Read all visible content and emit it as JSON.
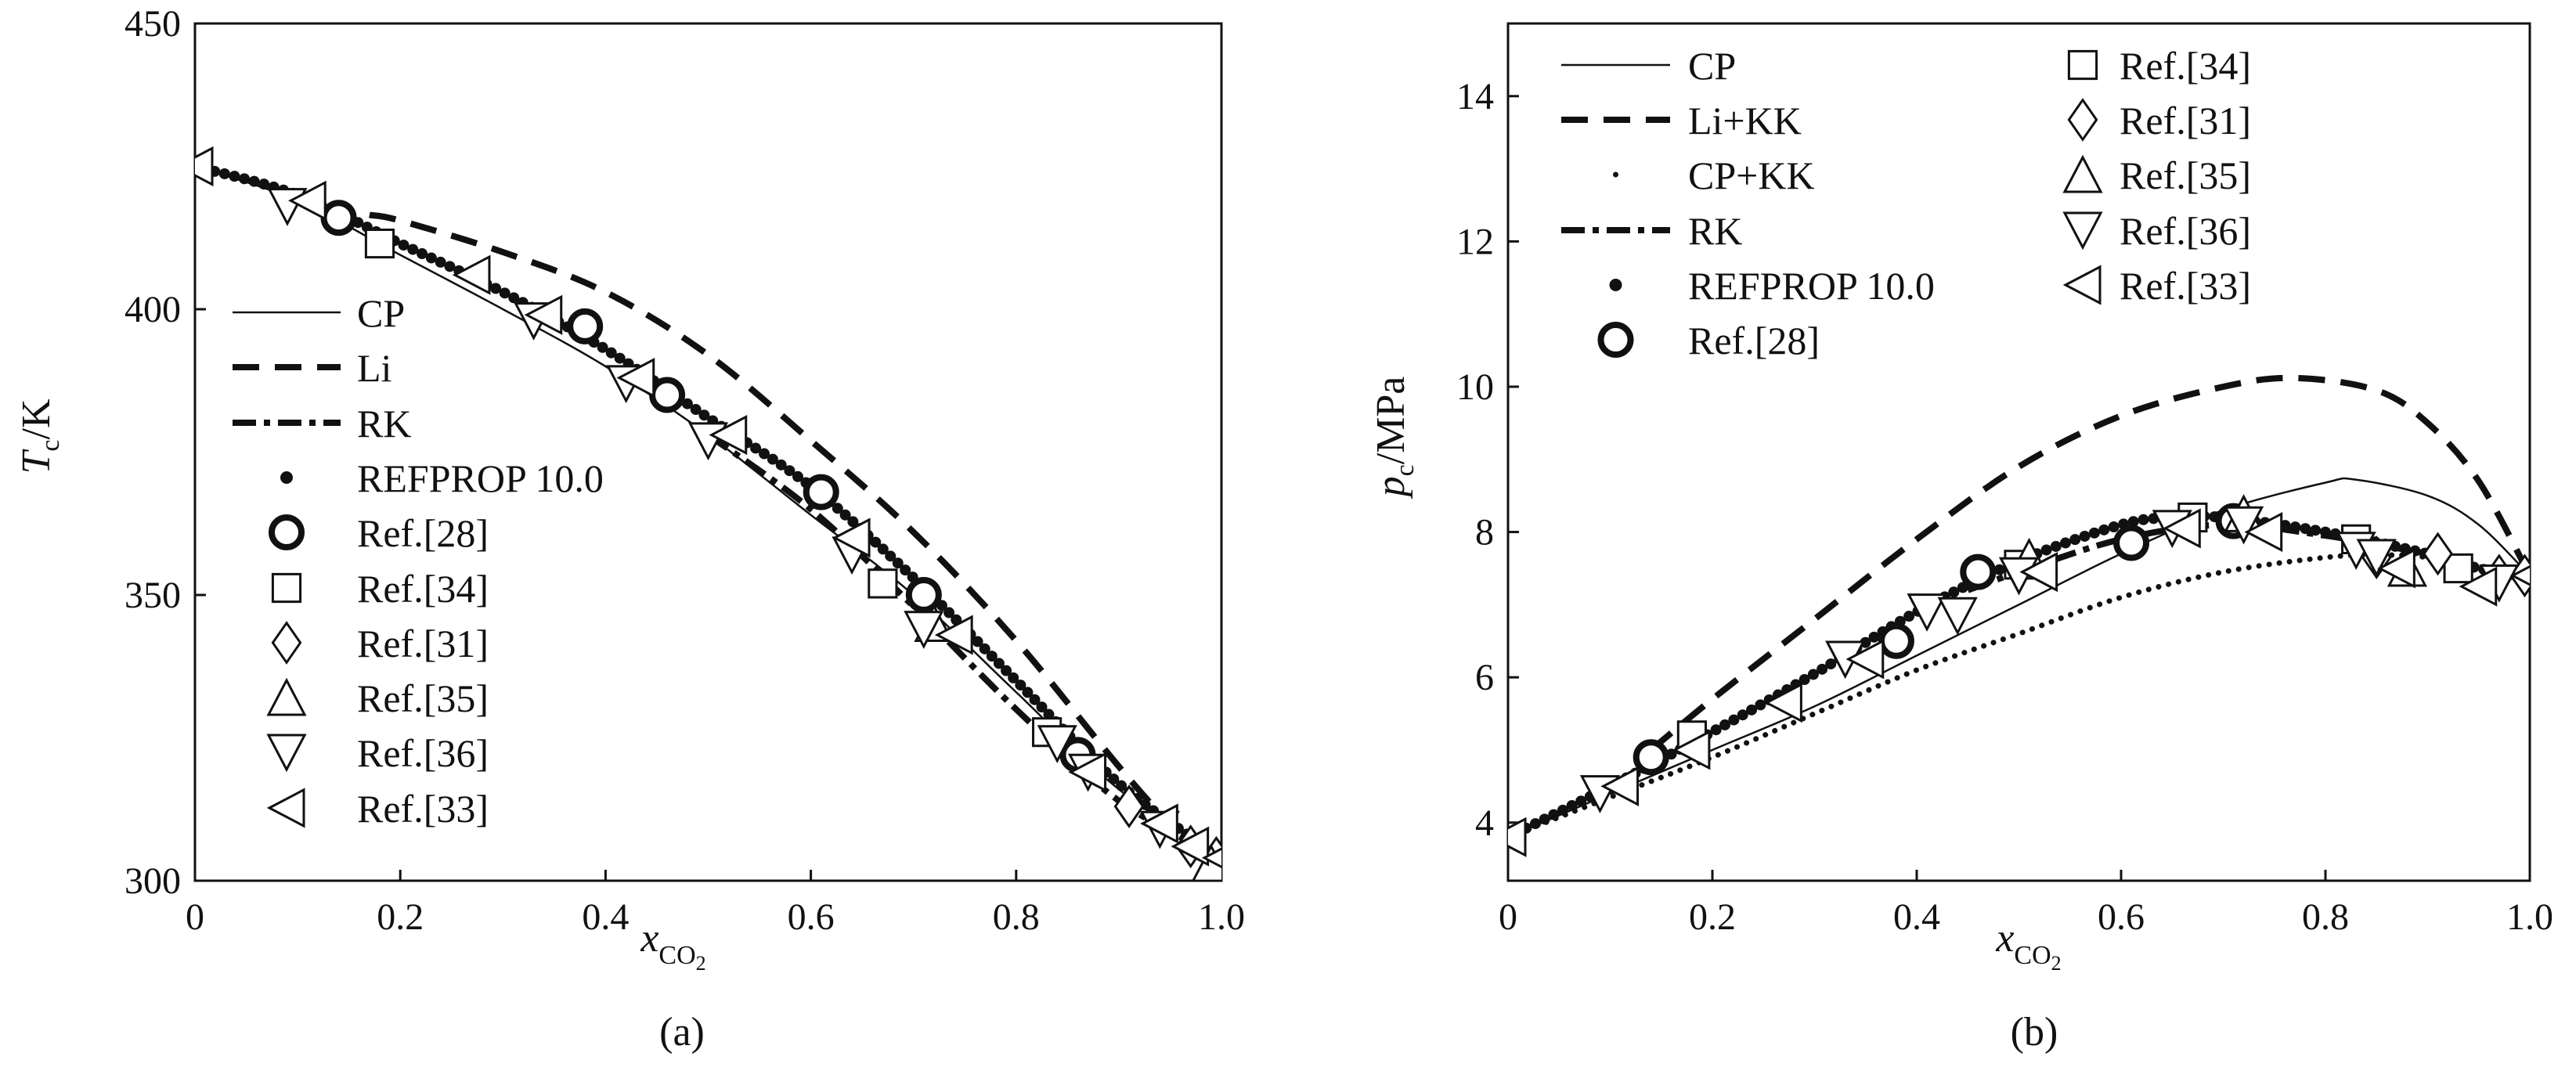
{
  "chart_data": [
    {
      "type": "line",
      "panel_label": "(a)",
      "xlabel": "x",
      "xlabel_sub": "CO",
      "xlabel_sub2": "2",
      "ylabel": "T",
      "ylabel_sub": "c",
      "ylabel_unit": "/K",
      "xlim": [
        0,
        1.0
      ],
      "ylim": [
        300,
        450
      ],
      "xticks": [
        0,
        0.2,
        0.4,
        0.6,
        0.8,
        1.0
      ],
      "xtick_labels": [
        "0",
        "0.2",
        "0.4",
        "0.6",
        "0.8",
        "1.0"
      ],
      "yticks": [
        300,
        350,
        400,
        450
      ],
      "ytick_labels": [
        "300",
        "350",
        "400",
        "450"
      ],
      "legend_placement": "center-left",
      "series": [
        {
          "name": "CP",
          "style": "solid",
          "x": [
            0,
            0.1,
            0.2,
            0.3,
            0.4,
            0.5,
            0.6,
            0.7,
            0.8,
            0.9,
            1.0
          ],
          "y": [
            425,
            419,
            409.5,
            400,
            390,
            378,
            364,
            350,
            333,
            316,
            304
          ]
        },
        {
          "name": "Li",
          "style": "dashed",
          "x": [
            0.17,
            0.2,
            0.3,
            0.4,
            0.5,
            0.6,
            0.7,
            0.8,
            0.9,
            0.95,
            1.0
          ],
          "y": [
            416.5,
            415.5,
            410,
            403,
            392,
            377,
            361,
            342,
            320,
            310,
            302
          ]
        },
        {
          "name": "RK",
          "style": "dashdot",
          "x": [
            0.5,
            0.6,
            0.7,
            0.8,
            0.9,
            1.0
          ],
          "y": [
            378,
            365,
            348,
            330,
            314,
            304
          ]
        },
        {
          "name": "REFPROP 10.0",
          "style": "dots",
          "x": [
            0,
            0.1,
            0.2,
            0.3,
            0.4,
            0.5,
            0.6,
            0.7,
            0.8,
            0.9,
            1.0
          ],
          "y": [
            425,
            420,
            411.5,
            403,
            393,
            381,
            369,
            353,
            335,
            317,
            304
          ]
        },
        {
          "name": "Ref.[28]",
          "style": "circle",
          "x": [
            0.14,
            0.38,
            0.46,
            0.61,
            0.71,
            0.86
          ],
          "y": [
            416,
            397,
            385,
            368,
            350,
            322
          ]
        },
        {
          "name": "Ref.[34]",
          "style": "square",
          "x": [
            0.18,
            0.67,
            0.83
          ],
          "y": [
            411.5,
            352,
            326
          ]
        },
        {
          "name": "Ref.[31]",
          "style": "diamond",
          "x": [
            0.91,
            0.97,
            0.995
          ],
          "y": [
            313,
            306,
            304
          ]
        },
        {
          "name": "Ref.[35]",
          "style": "triangle-up",
          "x": [
            0.72,
            0.99
          ],
          "y": [
            345,
            303
          ]
        },
        {
          "name": "Ref.[36]",
          "style": "triangle-down",
          "x": [
            0.09,
            0.33,
            0.42,
            0.5,
            0.64,
            0.71,
            0.84,
            0.87,
            0.94
          ],
          "y": [
            418,
            398,
            387,
            377,
            357,
            344,
            324,
            319,
            309
          ]
        },
        {
          "name": "Ref.[33]",
          "style": "triangle-left",
          "x": [
            0,
            0.11,
            0.27,
            0.34,
            0.43,
            0.52,
            0.64,
            0.74,
            0.87,
            0.94,
            0.97,
            1.0
          ],
          "y": [
            425,
            419,
            406,
            399,
            388,
            378,
            360,
            343,
            319,
            310,
            306,
            304
          ]
        }
      ]
    },
    {
      "type": "line",
      "panel_label": "(b)",
      "xlabel": "x",
      "xlabel_sub": "CO",
      "xlabel_sub2": "2",
      "ylabel": "p",
      "ylabel_sub": "c",
      "ylabel_unit": "/MPa",
      "xlim": [
        0,
        1.0
      ],
      "ylim": [
        3.2,
        15
      ],
      "xticks": [
        0,
        0.2,
        0.4,
        0.6,
        0.8,
        1.0
      ],
      "xtick_labels": [
        "0",
        "0.2",
        "0.4",
        "0.6",
        "0.8",
        "1.0"
      ],
      "yticks": [
        4,
        6,
        8,
        10,
        12,
        14
      ],
      "ytick_labels": [
        "4",
        "6",
        "8",
        "10",
        "12",
        "14"
      ],
      "legend_placement": "top-left",
      "series": [
        {
          "name": "CP",
          "style": "solid",
          "x": [
            0,
            0.1,
            0.2,
            0.3,
            0.4,
            0.5,
            0.6,
            0.7,
            0.8,
            0.83,
            0.9,
            0.95,
            1.0
          ],
          "y": [
            3.8,
            4.4,
            5.0,
            5.6,
            6.3,
            7.0,
            7.7,
            8.3,
            8.68,
            8.72,
            8.5,
            8.1,
            7.4
          ]
        },
        {
          "name": "Li+KK",
          "style": "dashed",
          "x": [
            0.14,
            0.2,
            0.3,
            0.4,
            0.5,
            0.6,
            0.7,
            0.77,
            0.85,
            0.9,
            0.95,
            1.0
          ],
          "y": [
            5.0,
            5.7,
            6.8,
            7.9,
            8.9,
            9.6,
            10.0,
            10.12,
            9.95,
            9.5,
            8.7,
            7.4
          ]
        },
        {
          "name": "CP+KK",
          "style": "dotted",
          "x": [
            0,
            0.1,
            0.2,
            0.3,
            0.4,
            0.5,
            0.6,
            0.7,
            0.8,
            0.85,
            0.9,
            1.0
          ],
          "y": [
            3.8,
            4.35,
            4.9,
            5.5,
            6.1,
            6.6,
            7.1,
            7.45,
            7.65,
            7.68,
            7.65,
            7.4
          ]
        },
        {
          "name": "RK",
          "style": "dashdot",
          "x": [
            0.45,
            0.5,
            0.6,
            0.7,
            0.8,
            0.9
          ],
          "y": [
            7.2,
            7.45,
            7.9,
            8.1,
            7.95,
            7.7
          ]
        },
        {
          "name": "REFPROP 10.0",
          "style": "dots",
          "x": [
            0,
            0.1,
            0.2,
            0.3,
            0.4,
            0.5,
            0.6,
            0.65,
            0.7,
            0.8,
            0.9,
            0.95,
            1.0
          ],
          "y": [
            3.8,
            4.5,
            5.25,
            6.05,
            6.9,
            7.6,
            8.1,
            8.2,
            8.2,
            8.0,
            7.7,
            7.5,
            7.38
          ]
        },
        {
          "name": "Ref.[28]",
          "style": "circle",
          "x": [
            0.14,
            0.38,
            0.46,
            0.61,
            0.71
          ],
          "y": [
            4.9,
            6.5,
            7.45,
            7.85,
            8.15
          ]
        },
        {
          "name": "Ref.[34]",
          "style": "square",
          "x": [
            0.18,
            0.5,
            0.67,
            0.83,
            0.93
          ],
          "y": [
            5.2,
            7.55,
            8.2,
            7.9,
            7.5
          ]
        },
        {
          "name": "Ref.[31]",
          "style": "diamond",
          "x": [
            0.85,
            0.91,
            0.97,
            0.995
          ],
          "y": [
            7.65,
            7.7,
            7.4,
            7.4
          ]
        },
        {
          "name": "Ref.[35]",
          "style": "triangle-up",
          "x": [
            0.51,
            0.72,
            0.88
          ],
          "y": [
            7.65,
            8.25,
            7.5
          ]
        },
        {
          "name": "Ref.[36]",
          "style": "triangle-down",
          "x": [
            0.09,
            0.33,
            0.41,
            0.44,
            0.5,
            0.65,
            0.72,
            0.83,
            0.85,
            0.97
          ],
          "y": [
            4.4,
            6.25,
            6.9,
            6.85,
            7.4,
            8.05,
            8.1,
            7.75,
            7.65,
            7.3
          ]
        },
        {
          "name": "Ref.[33]",
          "style": "triangle-left",
          "x": [
            0,
            0.11,
            0.18,
            0.27,
            0.35,
            0.52,
            0.66,
            0.74,
            0.87,
            0.95,
            1.0
          ],
          "y": [
            3.8,
            4.5,
            5.0,
            5.65,
            6.25,
            7.45,
            8.05,
            8.0,
            7.5,
            7.25,
            7.4
          ]
        }
      ]
    }
  ]
}
